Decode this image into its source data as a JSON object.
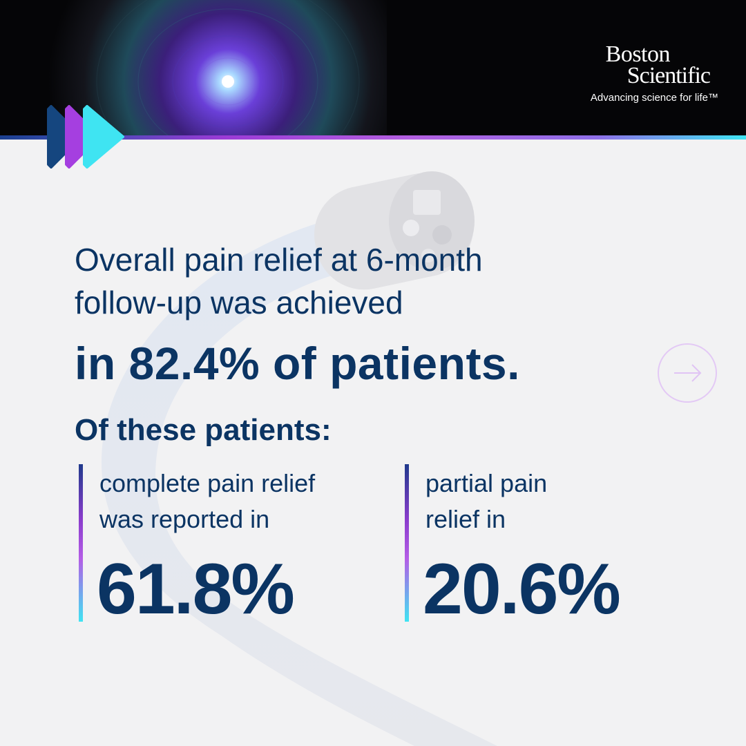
{
  "logo": {
    "line1": "Boston",
    "line2": "Scientific",
    "tagline": "Advancing science for life™"
  },
  "headline": {
    "line1": "Overall pain relief at 6-month",
    "line2": "follow-up was achieved",
    "bold": "in 82.4% of patients."
  },
  "subhead": "Of these patients:",
  "stats": [
    {
      "label_line1": "complete pain relief",
      "label_line2": "was reported in",
      "value": "61.8%"
    },
    {
      "label_line1": "partial pain",
      "label_line2": "relief in",
      "value": "20.6%"
    }
  ],
  "icons": {
    "chevrons": "triple-chevron-icon",
    "next": "arrow-right-icon"
  },
  "colors": {
    "navy": "#0b3463",
    "purple": "#b45de6",
    "cyan": "#3fe4f2",
    "background": "#f2f2f3"
  }
}
